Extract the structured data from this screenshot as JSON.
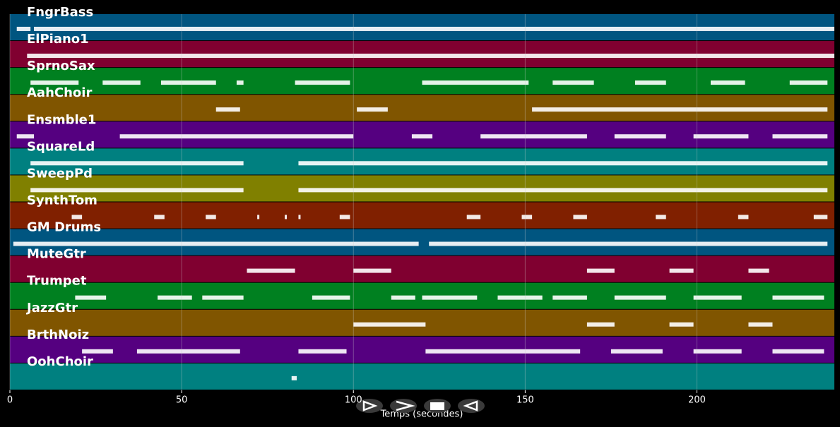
{
  "chart_data": {
    "type": "piano-roll",
    "xlabel": "Temps (secondes)",
    "xlim": [
      0,
      240
    ],
    "xticks": [
      0,
      50,
      100,
      150,
      200
    ],
    "grid": true,
    "tracks": [
      {
        "name": "FngrBass",
        "color": "#005580",
        "notes": [
          [
            2,
            6
          ],
          [
            7,
            240
          ]
        ]
      },
      {
        "name": "ElPiano1",
        "color": "#800030",
        "notes": [
          [
            5,
            240
          ]
        ]
      },
      {
        "name": "SprnoSax",
        "color": "#008020",
        "notes": [
          [
            6,
            20
          ],
          [
            27,
            38
          ],
          [
            44,
            60
          ],
          [
            66,
            68
          ],
          [
            83,
            99
          ],
          [
            120,
            151
          ],
          [
            158,
            170
          ],
          [
            182,
            191
          ],
          [
            204,
            214
          ],
          [
            227,
            238
          ]
        ]
      },
      {
        "name": "AahChoir",
        "color": "#805500",
        "notes": [
          [
            60,
            67
          ],
          [
            101,
            110
          ],
          [
            152,
            238
          ]
        ]
      },
      {
        "name": "Ensmble1",
        "color": "#550080",
        "notes": [
          [
            2,
            7
          ],
          [
            32,
            100
          ],
          [
            117,
            123
          ],
          [
            137,
            168
          ],
          [
            176,
            191
          ],
          [
            199,
            215
          ],
          [
            222,
            238
          ]
        ]
      },
      {
        "name": "SquareLd",
        "color": "#008080",
        "notes": [
          [
            6,
            68
          ],
          [
            84,
            238
          ]
        ]
      },
      {
        "name": "SweepPd",
        "color": "#808000",
        "notes": [
          [
            6,
            68
          ],
          [
            84,
            238
          ]
        ]
      },
      {
        "name": "SynthTom",
        "color": "#802000",
        "notes": [
          [
            18,
            21
          ],
          [
            42,
            45
          ],
          [
            57,
            60
          ],
          [
            72,
            72.5
          ],
          [
            80,
            80.5
          ],
          [
            84,
            84.5
          ],
          [
            96,
            99
          ],
          [
            133,
            137
          ],
          [
            149,
            152
          ],
          [
            164,
            168
          ],
          [
            188,
            191
          ],
          [
            212,
            215
          ],
          [
            234,
            238
          ]
        ]
      },
      {
        "name": "GM Drums",
        "color": "#005580",
        "notes": [
          [
            1,
            119
          ],
          [
            122,
            238
          ]
        ]
      },
      {
        "name": "MuteGtr",
        "color": "#800030",
        "notes": [
          [
            69,
            83
          ],
          [
            100,
            111
          ],
          [
            168,
            176
          ],
          [
            192,
            199
          ],
          [
            215,
            221
          ]
        ]
      },
      {
        "name": "Trumpet",
        "color": "#008020",
        "notes": [
          [
            19,
            28
          ],
          [
            43,
            53
          ],
          [
            56,
            68
          ],
          [
            88,
            99
          ],
          [
            111,
            118
          ],
          [
            120,
            136
          ],
          [
            142,
            155
          ],
          [
            158,
            168
          ],
          [
            176,
            191
          ],
          [
            199,
            213
          ],
          [
            222,
            237
          ]
        ]
      },
      {
        "name": "JazzGtr",
        "color": "#805500",
        "notes": [
          [
            100,
            121
          ],
          [
            168,
            176
          ],
          [
            192,
            199
          ],
          [
            215,
            222
          ]
        ]
      },
      {
        "name": "BrthNoiz",
        "color": "#550080",
        "notes": [
          [
            21,
            30
          ],
          [
            37,
            67
          ],
          [
            84,
            98
          ],
          [
            121,
            166
          ],
          [
            175,
            190
          ],
          [
            199,
            213
          ],
          [
            222,
            237
          ]
        ]
      },
      {
        "name": "OohChoir",
        "color": "#008080",
        "notes": [
          [
            82,
            83.5
          ]
        ]
      }
    ]
  }
}
